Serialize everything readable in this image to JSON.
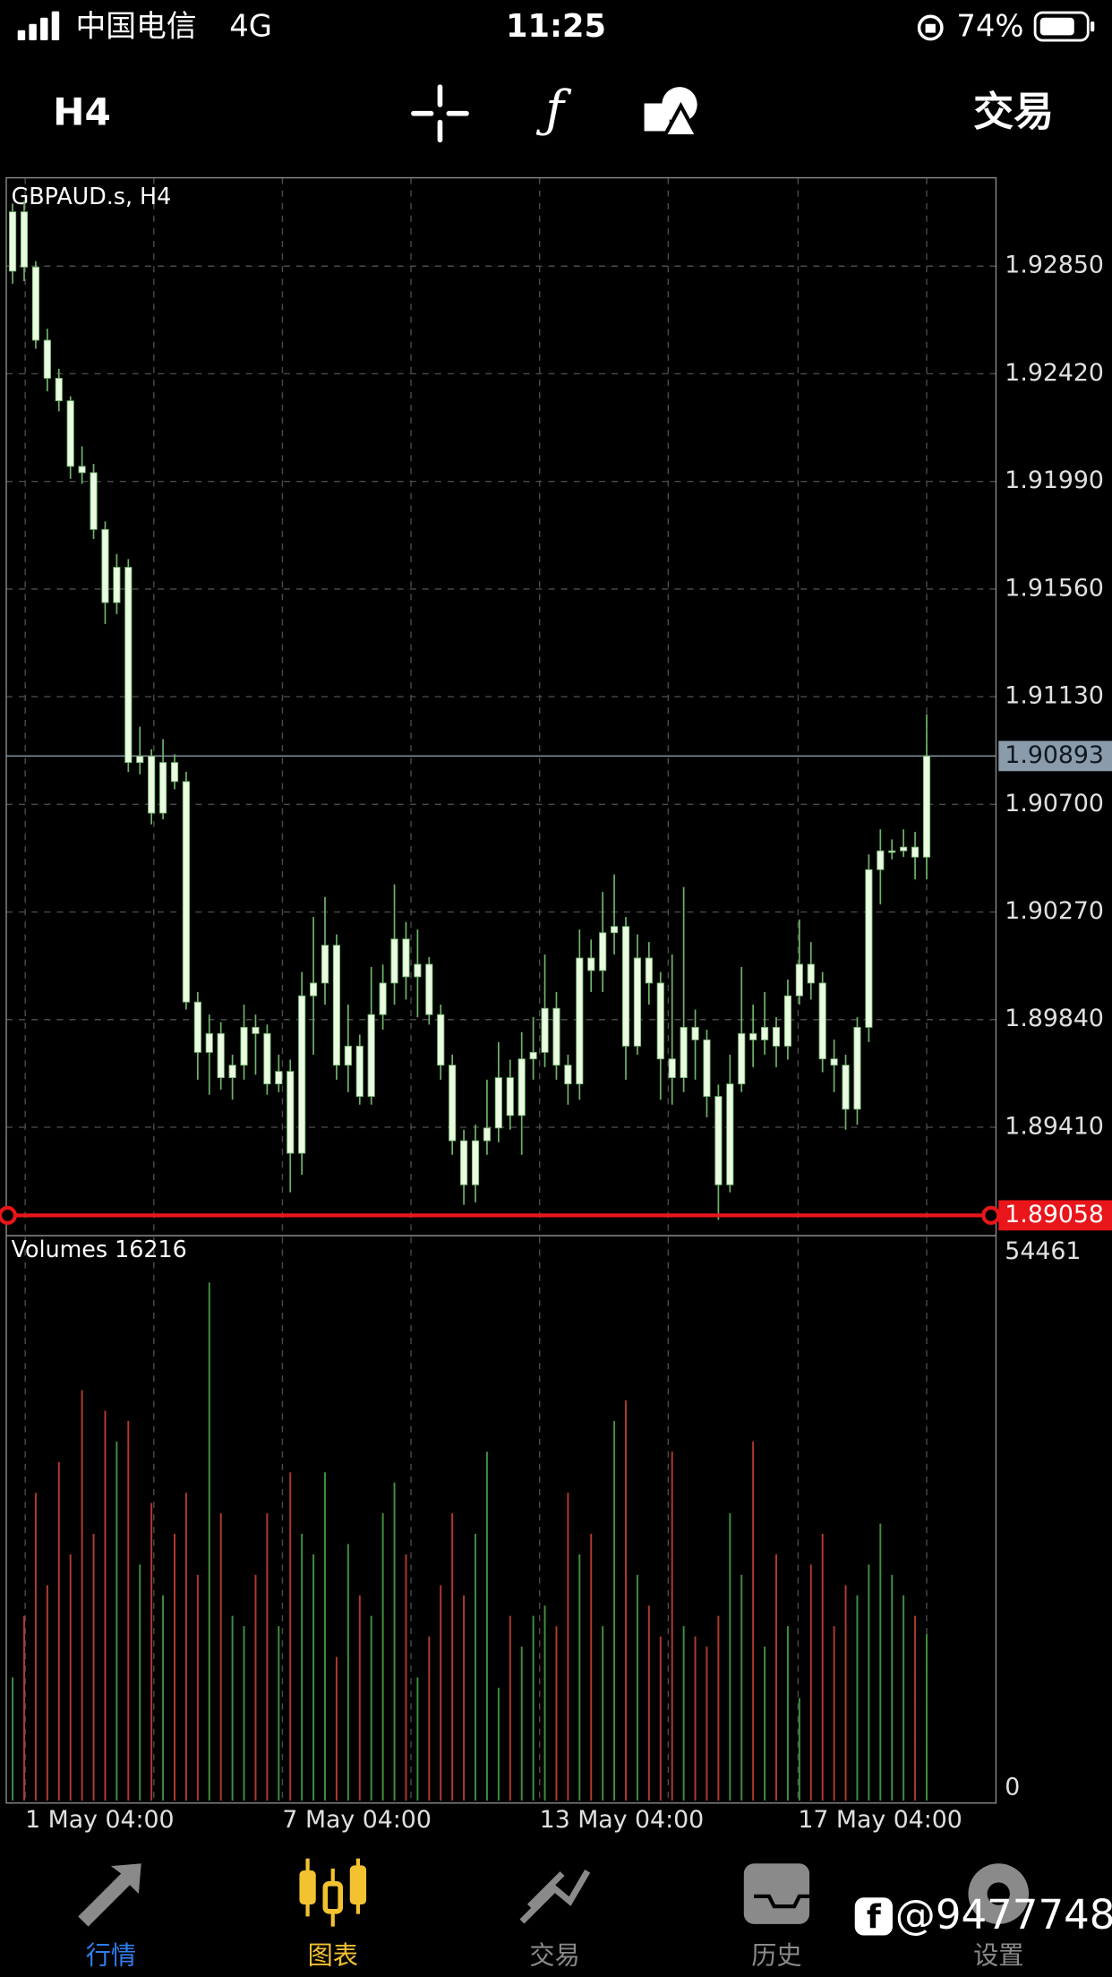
{
  "status_bar": {
    "carrier": "中国电信",
    "network": "4G",
    "time": "11:25",
    "battery": "74%"
  },
  "toolbar": {
    "timeframe": "H4",
    "trade": "交易"
  },
  "chart_data": {
    "type": "candlestick",
    "title": "GBPAUD.s, H4",
    "open": [
      1.9283,
      1.93067,
      1.92846,
      1.92554,
      1.92402,
      1.92312,
      1.9205,
      1.92025,
      1.91798,
      1.91506,
      1.91647,
      1.90867,
      1.90892,
      1.90665,
      1.90867,
      1.90791,
      1.8991,
      1.89709,
      1.89784,
      1.89608,
      1.89658,
      1.89809,
      1.89784,
      1.89583,
      1.89633,
      1.89306,
      1.89935,
      1.89986,
      1.90137,
      1.89658,
      1.89734,
      1.89533,
      1.8986,
      1.89986,
      1.90162,
      1.90011,
      1.90061,
      1.8986,
      1.89658,
      1.89356,
      1.8918,
      1.89356,
      1.89407,
      1.89608,
      1.89457,
      1.89683,
      1.89709,
      1.89885,
      1.89658,
      1.89583,
      1.90086,
      1.90036,
      1.90187,
      1.90212,
      1.89734,
      1.90086,
      1.89986,
      1.89683,
      1.89608,
      1.89809,
      1.89759,
      1.89533,
      1.8918,
      1.89583,
      1.89784,
      1.89759,
      1.89809,
      1.89734,
      1.89935,
      1.90061,
      1.89986,
      1.89683,
      1.89658,
      1.89482,
      1.89809,
      1.90439,
      1.90514,
      1.90514,
      1.90529,
      1.90489
    ],
    "high": [
      1.931,
      1.9311,
      1.9287,
      1.926,
      1.9244,
      1.9233,
      1.9213,
      1.9206,
      1.9183,
      1.917,
      1.9168,
      1.9101,
      1.9092,
      1.9096,
      1.909,
      1.9083,
      1.8995,
      1.8986,
      1.8983,
      1.897,
      1.899,
      1.8986,
      1.8982,
      1.897,
      1.8968,
      1.9003,
      1.9025,
      1.9033,
      1.9018,
      1.899,
      1.8978,
      1.9005,
      1.9006,
      1.9038,
      1.9023,
      1.902,
      1.9009,
      1.899,
      1.897,
      1.894,
      1.8942,
      1.896,
      1.8975,
      1.8968,
      1.8979,
      1.8985,
      1.901,
      1.8995,
      1.897,
      1.902,
      1.9016,
      1.9035,
      1.9042,
      1.9025,
      1.9018,
      1.9015,
      1.9003,
      1.901,
      1.9037,
      1.8988,
      1.898,
      1.8958,
      1.897,
      1.9005,
      1.899,
      1.8995,
      1.8985,
      1.9,
      1.9024,
      1.9015,
      1.9003,
      1.8976,
      1.897,
      1.8985,
      1.905,
      1.906,
      1.9056,
      1.906,
      1.9059,
      1.9106
    ],
    "low": [
      1.9278,
      1.9279,
      1.9252,
      1.9235,
      1.9227,
      1.92,
      1.9198,
      1.9176,
      1.9142,
      1.9146,
      1.9083,
      1.9082,
      1.9062,
      1.9064,
      1.9076,
      1.8988,
      1.896,
      1.8954,
      1.8956,
      1.8952,
      1.896,
      1.8962,
      1.8954,
      1.8955,
      1.8915,
      1.8922,
      1.897,
      1.899,
      1.896,
      1.8955,
      1.895,
      1.895,
      1.898,
      1.899,
      1.8992,
      1.8985,
      1.8982,
      1.896,
      1.893,
      1.891,
      1.8911,
      1.893,
      1.8935,
      1.894,
      1.893,
      1.896,
      1.8965,
      1.896,
      1.895,
      1.8952,
      1.8995,
      1.8995,
      1.901,
      1.896,
      1.897,
      1.899,
      1.8952,
      1.895,
      1.8955,
      1.896,
      1.8945,
      1.8904,
      1.8915,
      1.8955,
      1.8965,
      1.897,
      1.8965,
      1.8968,
      1.899,
      1.8992,
      1.8963,
      1.8955,
      1.894,
      1.8942,
      1.8975,
      1.903,
      1.9048,
      1.9049,
      1.904,
      1.904
    ],
    "close": [
      1.93067,
      1.92846,
      1.92554,
      1.92402,
      1.92312,
      1.9205,
      1.92025,
      1.91798,
      1.91506,
      1.91647,
      1.90867,
      1.90892,
      1.90665,
      1.90867,
      1.90791,
      1.8991,
      1.89709,
      1.89784,
      1.89608,
      1.89658,
      1.89809,
      1.89784,
      1.89583,
      1.89633,
      1.89306,
      1.89935,
      1.89986,
      1.90137,
      1.89658,
      1.89734,
      1.89533,
      1.8986,
      1.89986,
      1.90162,
      1.90011,
      1.90061,
      1.8986,
      1.89658,
      1.89356,
      1.8918,
      1.89356,
      1.89407,
      1.89608,
      1.89457,
      1.89683,
      1.89709,
      1.89885,
      1.89658,
      1.89583,
      1.90086,
      1.90036,
      1.90187,
      1.90212,
      1.89734,
      1.90086,
      1.89986,
      1.89683,
      1.89608,
      1.89809,
      1.89759,
      1.89533,
      1.8918,
      1.89583,
      1.89784,
      1.89759,
      1.89809,
      1.89734,
      1.89935,
      1.90061,
      1.89986,
      1.89683,
      1.89658,
      1.89482,
      1.89809,
      1.90439,
      1.90514,
      1.90514,
      1.90529,
      1.90489,
      1.90893
    ],
    "body_color": "#eafbe2",
    "wick_color": "#6fb36a",
    "ylim": [
      1.88977,
      1.93203
    ],
    "yticks": [
      {
        "value": 1.9285,
        "label": "1.92850"
      },
      {
        "value": 1.9242,
        "label": "1.92420"
      },
      {
        "value": 1.9199,
        "label": "1.91990"
      },
      {
        "value": 1.9156,
        "label": "1.91560"
      },
      {
        "value": 1.9113,
        "label": "1.91130"
      },
      {
        "value": 1.907,
        "label": "1.90700"
      },
      {
        "value": 1.9027,
        "label": "1.90270"
      },
      {
        "value": 1.8984,
        "label": "1.89840"
      },
      {
        "value": 1.8941,
        "label": "1.89410"
      }
    ],
    "grid": true,
    "current_price": 1.90893,
    "level_line": 1.89058,
    "xtick_labels": [
      "1 May 04:00",
      "7 May 04:00",
      "13 May 04:00",
      "17 May 04:00"
    ],
    "volume": {
      "name": "Volumes",
      "values": [
        12000,
        18000,
        30000,
        21000,
        33000,
        24000,
        40000,
        26000,
        38000,
        35000,
        37000,
        23000,
        29000,
        20000,
        26000,
        30000,
        22000,
        50500,
        28000,
        18000,
        17000,
        22000,
        28000,
        17000,
        32000,
        26000,
        24000,
        32000,
        14000,
        25000,
        20000,
        18000,
        28000,
        31000,
        24000,
        12000,
        16000,
        21000,
        28000,
        20000,
        26000,
        34000,
        11000,
        18000,
        15000,
        18000,
        19000,
        17000,
        30000,
        24000,
        26000,
        17000,
        37000,
        39000,
        22000,
        19000,
        16000,
        34000,
        17000,
        16000,
        15000,
        18000,
        28000,
        22000,
        35000,
        15000,
        24000,
        17000,
        10000,
        23000,
        26000,
        17000,
        21000,
        20000,
        23000,
        27000,
        22000,
        20000,
        18000,
        16216
      ],
      "up_color": "#3f8f3f",
      "down_color": "#b03a2e",
      "ylim": [
        0,
        54461
      ],
      "yticks": [
        54461,
        0
      ]
    }
  },
  "tab_bar": {
    "tabs": [
      "行情",
      "图表",
      "交易",
      "历史",
      "设置"
    ]
  },
  "watermark": "@9477748"
}
